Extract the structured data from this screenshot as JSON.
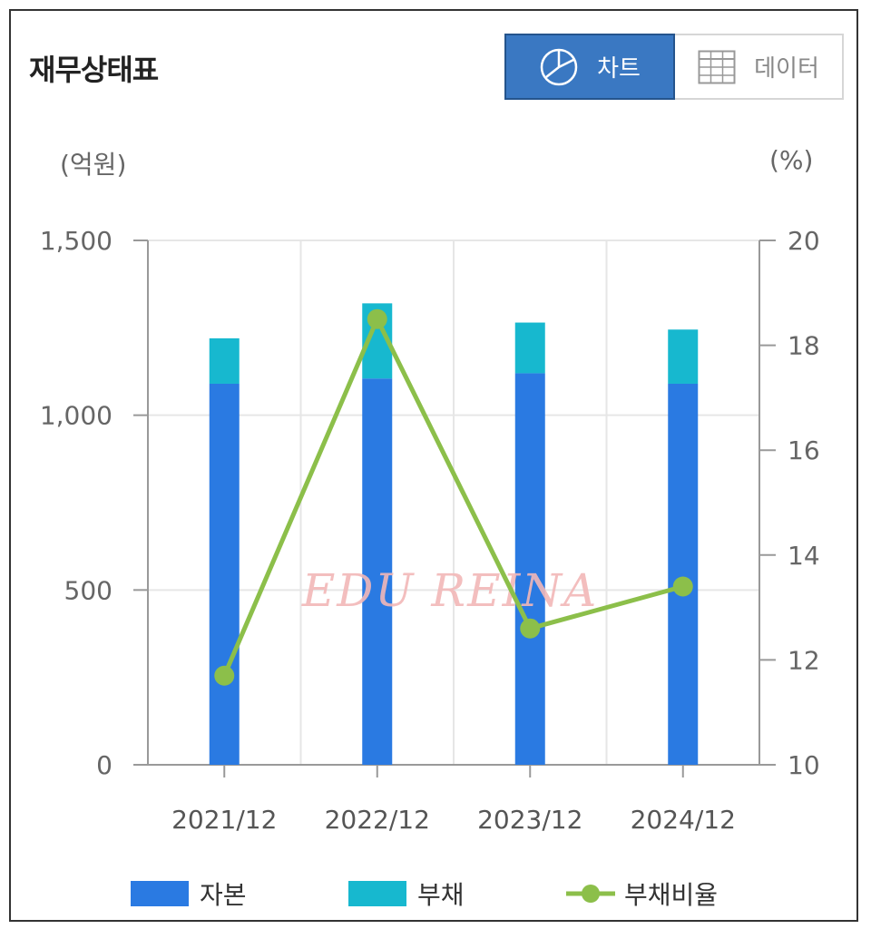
{
  "header": {
    "title": "재무상태표",
    "chart_button_label": "차트",
    "data_button_label": "데이터"
  },
  "units": {
    "left": "(억원)",
    "right": "(%)"
  },
  "watermark": "EDU REINA",
  "colors": {
    "equity": "#2a7ae2",
    "debt": "#17b8cf",
    "ratio": "#8cbf4a",
    "accent": "#3a78c2"
  },
  "chart_data": {
    "type": "bar",
    "stacked": true,
    "categories": [
      "2021/12",
      "2022/12",
      "2023/12",
      "2024/12"
    ],
    "series": [
      {
        "name": "자본",
        "axis": "left",
        "type": "bar",
        "values": [
          1090,
          1105,
          1120,
          1090
        ]
      },
      {
        "name": "부채",
        "axis": "left",
        "type": "bar",
        "values": [
          130,
          215,
          145,
          155
        ]
      },
      {
        "name": "부채비율",
        "axis": "right",
        "type": "line",
        "values": [
          11.7,
          18.5,
          12.6,
          13.4
        ]
      }
    ],
    "ylim_left": [
      0,
      1500
    ],
    "yticks_left": [
      "0",
      "500",
      "1,000",
      "1,500"
    ],
    "ylim_right": [
      10,
      20
    ],
    "yticks_right": [
      "10",
      "12",
      "14",
      "16",
      "18",
      "20"
    ],
    "grid": true,
    "legend": "bottom"
  }
}
